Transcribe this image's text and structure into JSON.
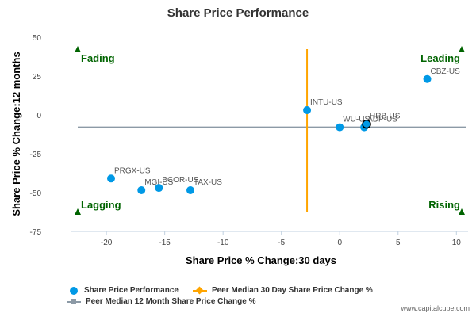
{
  "chart_data": {
    "type": "scatter",
    "title": "Share Price Performance",
    "xlabel": "Share Price % Change:30 days",
    "ylabel": "Share Price % Change:12 months",
    "xlim": [
      -23,
      11
    ],
    "ylim": [
      -75,
      55
    ],
    "xticks": [
      -20,
      -15,
      -10,
      -5,
      0,
      5,
      10
    ],
    "yticks": [
      50,
      25,
      0,
      -25,
      -50,
      -75
    ],
    "grid": false,
    "legend_position": "bottom",
    "series": [
      {
        "name": "Share Price Performance",
        "color": "#0099e6",
        "points": [
          {
            "label": "CBZ-US",
            "x": 7.5,
            "y": 23
          },
          {
            "label": "INTU-US",
            "x": -2.8,
            "y": 3
          },
          {
            "label": "WU-US",
            "x": 0,
            "y": -8
          },
          {
            "label": "ADP-US",
            "x": 2.1,
            "y": -8
          },
          {
            "label": "HRB-US",
            "x": 2.3,
            "y": -6
          },
          {
            "label": "PRGX-US",
            "x": -19.6,
            "y": -41
          },
          {
            "label": "MGI-US",
            "x": -17,
            "y": -48.5
          },
          {
            "label": "BCOR-US",
            "x": -15.5,
            "y": -47
          },
          {
            "label": "TAX-US",
            "x": -12.8,
            "y": -48.5
          }
        ]
      },
      {
        "name": "Peer Median 30 Day Share Price Change %",
        "color": "#ffa500",
        "x": -2.8
      },
      {
        "name": "Peer Median 12 Month Share Price Change %",
        "color": "#8c9aa6",
        "y": -8
      }
    ],
    "highlighted_point": "HRB-US",
    "quadrant_labels": {
      "top_left": "Fading",
      "top_right": "Leading",
      "bottom_left": "Lagging",
      "bottom_right": "Rising"
    },
    "credit": "www.capitalcube.com"
  }
}
